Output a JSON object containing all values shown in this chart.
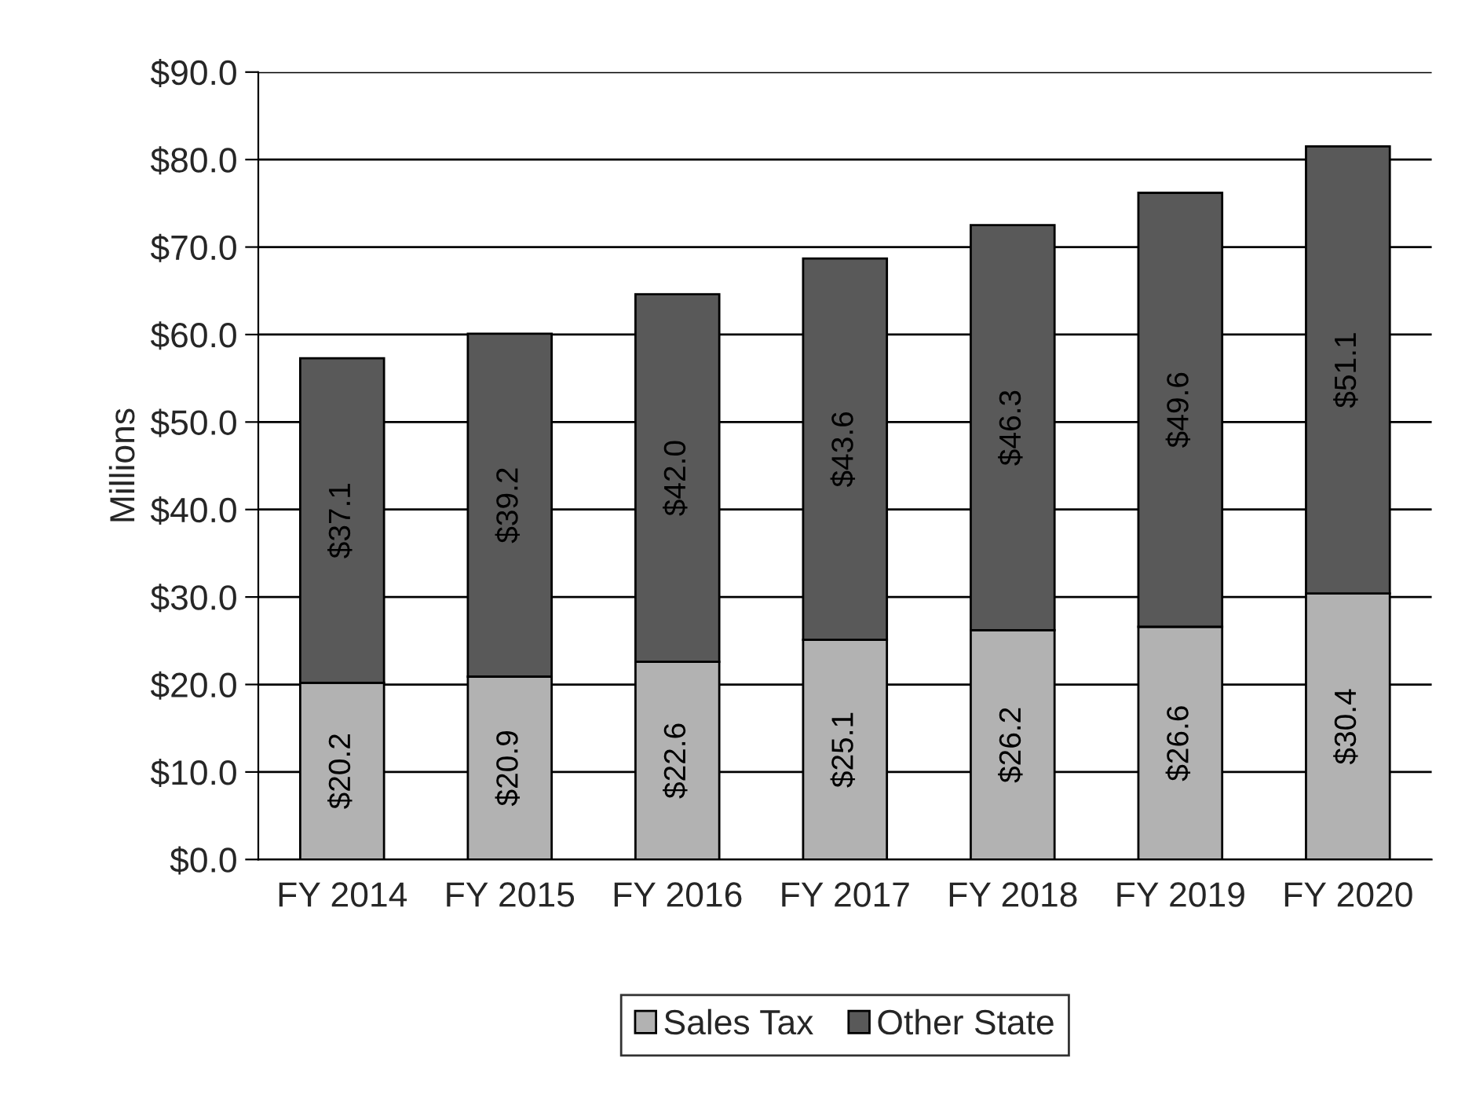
{
  "chart_data": {
    "type": "bar",
    "stacked": true,
    "ylabel": "Millions",
    "categories": [
      "FY 2014",
      "FY 2015",
      "FY 2016",
      "FY 2017",
      "FY 2018",
      "FY 2019",
      "FY 2020"
    ],
    "series": [
      {
        "name": "Sales Tax",
        "color": "#b2b2b2",
        "values": [
          20.2,
          20.9,
          22.6,
          25.1,
          26.2,
          26.6,
          30.4
        ],
        "value_labels": [
          "$20.2",
          "$20.9",
          "$22.6",
          "$25.1",
          "$26.2",
          "$26.6",
          "$30.4"
        ]
      },
      {
        "name": "Other State",
        "color": "#595959",
        "values": [
          37.1,
          39.2,
          42.0,
          43.6,
          46.3,
          49.6,
          51.1
        ],
        "value_labels": [
          "$37.1",
          "$39.2",
          "$42.0",
          "$43.6",
          "$46.3",
          "$49.6",
          "$51.1"
        ]
      }
    ],
    "ylim": [
      0,
      90
    ],
    "yticks": [
      {
        "value": 0,
        "label": "$0.0"
      },
      {
        "value": 10,
        "label": "$10.0"
      },
      {
        "value": 20,
        "label": "$20.0"
      },
      {
        "value": 30,
        "label": "$30.0"
      },
      {
        "value": 40,
        "label": "$40.0"
      },
      {
        "value": 50,
        "label": "$50.0"
      },
      {
        "value": 60,
        "label": "$60.0"
      },
      {
        "value": 70,
        "label": "$70.0"
      },
      {
        "value": 80,
        "label": "$80.0"
      },
      {
        "value": 90,
        "label": "$90.0"
      }
    ],
    "grid": "y",
    "legend": "bottom"
  }
}
